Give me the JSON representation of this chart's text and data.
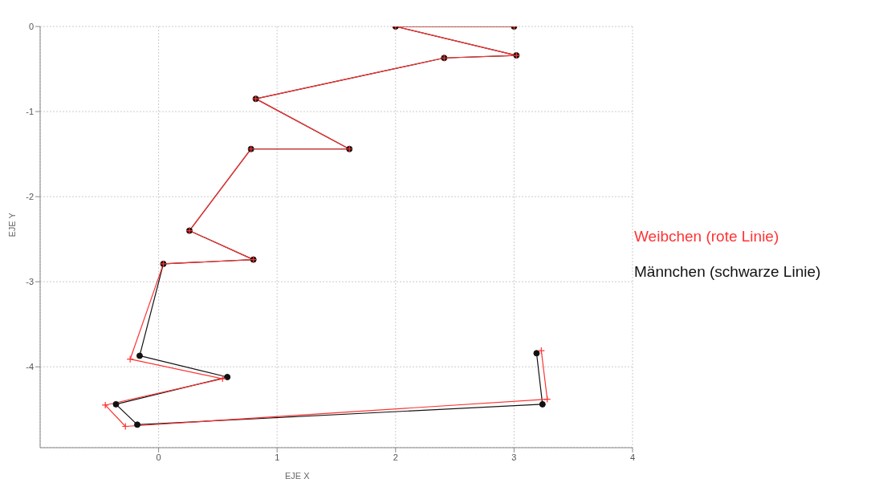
{
  "chart_data": {
    "type": "line",
    "xlabel": "EJE X",
    "ylabel": "EJE Y",
    "xlim": [
      -1,
      4
    ],
    "xticks": [
      0,
      1,
      2,
      3,
      4
    ],
    "ylim": [
      -4.95,
      0
    ],
    "yticks": [
      -4,
      -3,
      -2,
      -1,
      0
    ],
    "grid": true,
    "legend": "right",
    "series": [
      {
        "name": "Weibchen (rote Linie)",
        "color": "#ff3333",
        "marker": "cross",
        "x": [
          3.0,
          2.0,
          3.02,
          2.41,
          0.82,
          1.61,
          0.78,
          0.26,
          0.8,
          0.04,
          -0.24,
          0.54,
          -0.45,
          -0.28,
          3.28,
          3.23
        ],
        "values": [
          0,
          0,
          -0.34,
          -0.37,
          -0.85,
          -1.44,
          -1.44,
          -2.4,
          -2.74,
          -2.79,
          -3.91,
          -4.14,
          -4.45,
          -4.7,
          -4.38,
          -3.81
        ]
      },
      {
        "name": "Männchen (schwarze Linie)",
        "color": "#111111",
        "marker": "circle",
        "x": [
          3.0,
          2.0,
          3.02,
          2.41,
          0.82,
          1.61,
          0.78,
          0.26,
          0.8,
          0.04,
          -0.16,
          0.58,
          -0.36,
          -0.18,
          3.24,
          3.19
        ],
        "values": [
          0,
          0,
          -0.34,
          -0.37,
          -0.85,
          -1.44,
          -1.44,
          -2.4,
          -2.74,
          -2.79,
          -3.87,
          -4.12,
          -4.44,
          -4.68,
          -4.44,
          -3.84
        ]
      }
    ]
  }
}
